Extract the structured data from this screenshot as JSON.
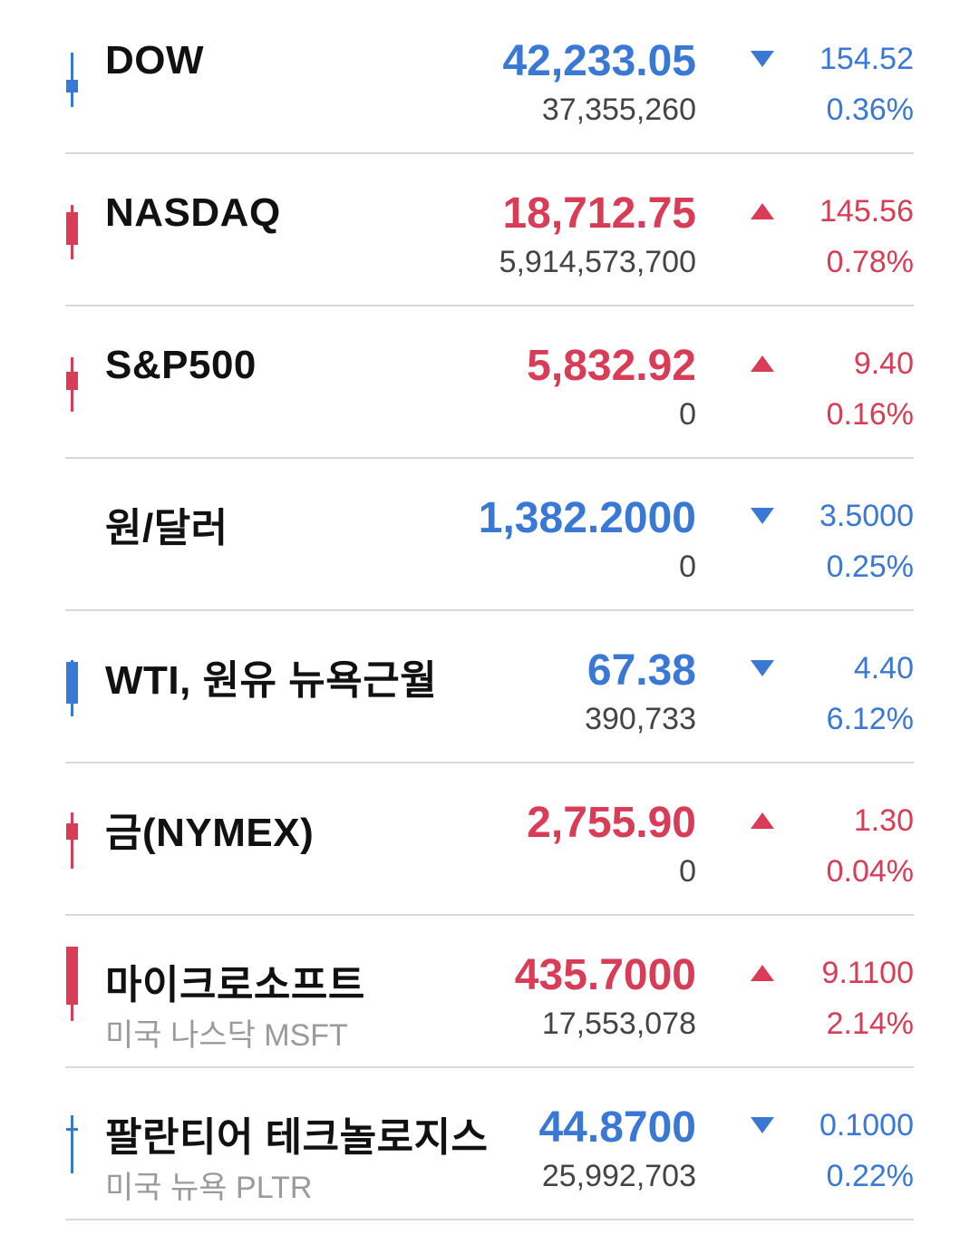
{
  "colors": {
    "up": "#d83c56",
    "down": "#3a78d6",
    "divider": "#d8d8d8"
  },
  "rows": [
    {
      "name": "DOW",
      "subtitle": "",
      "price": "42,233.05",
      "volume": "37,355,260",
      "direction": "down",
      "change": "154.52",
      "change_pct": "0.36%"
    },
    {
      "name": "NASDAQ",
      "subtitle": "",
      "price": "18,712.75",
      "volume": "5,914,573,700",
      "direction": "up",
      "change": "145.56",
      "change_pct": "0.78%"
    },
    {
      "name": "S&P500",
      "subtitle": "",
      "price": "5,832.92",
      "volume": "0",
      "direction": "up",
      "change": "9.40",
      "change_pct": "0.16%"
    },
    {
      "name": "원/달러",
      "subtitle": "",
      "price": "1,382.2000",
      "volume": "0",
      "direction": "down",
      "change": "3.5000",
      "change_pct": "0.25%"
    },
    {
      "name": "WTI, 원유 뉴욕근월",
      "subtitle": "",
      "price": "67.38",
      "volume": "390,733",
      "direction": "down",
      "change": "4.40",
      "change_pct": "6.12%"
    },
    {
      "name": "금(NYMEX)",
      "subtitle": "",
      "price": "2,755.90",
      "volume": "0",
      "direction": "up",
      "change": "1.30",
      "change_pct": "0.04%"
    },
    {
      "name": "마이크로소프트",
      "subtitle": "미국 나스닥 MSFT",
      "price": "435.7000",
      "volume": "17,553,078",
      "direction": "up",
      "change": "9.1100",
      "change_pct": "2.14%"
    },
    {
      "name": "팔란티어 테크놀로지스",
      "subtitle": "미국 뉴욕 PLTR",
      "price": "44.8700",
      "volume": "25,992,703",
      "direction": "down",
      "change": "0.1000",
      "change_pct": "0.22%"
    }
  ]
}
